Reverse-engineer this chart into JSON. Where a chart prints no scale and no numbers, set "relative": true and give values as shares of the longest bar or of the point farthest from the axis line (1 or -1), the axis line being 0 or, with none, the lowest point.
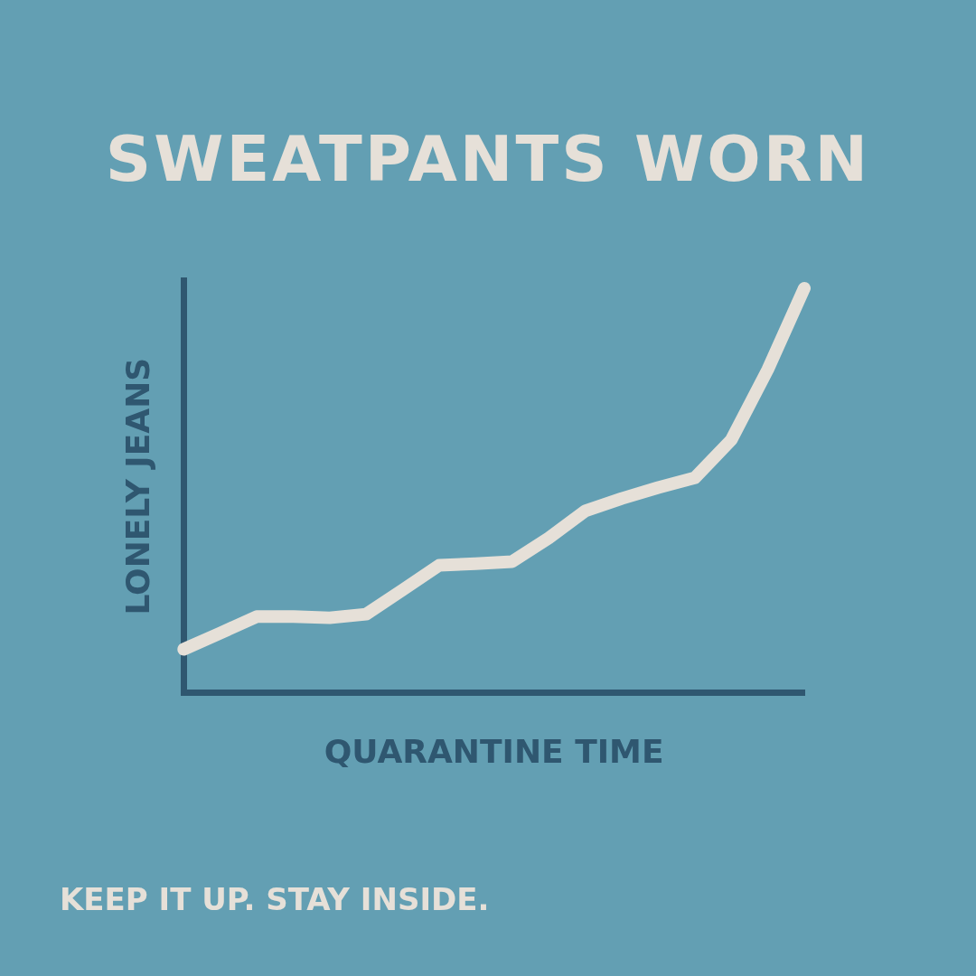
{
  "chart_data": {
    "type": "line",
    "title": "SWEATPANTS WORN",
    "xlabel": "QUARANTINE TIME",
    "ylabel": "LONELY JEANS",
    "relative": true,
    "legend": false,
    "marker": "none",
    "line_style": "solid",
    "annotations": [
      "KEEP IT UP. STAY INSIDE."
    ],
    "categories": [
      null,
      null,
      null,
      null,
      null,
      null,
      null,
      null,
      null,
      null,
      null,
      null,
      null,
      null,
      null,
      null,
      null,
      null
    ],
    "series": [
      {
        "color": "#e6e0d8",
        "values": [
          0.107,
          0.147,
          0.188,
          0.188,
          0.185,
          0.194,
          0.254,
          0.315,
          0.319,
          0.324,
          0.382,
          0.449,
          0.48,
          0.507,
          0.531,
          0.625,
          0.799,
          1
        ]
      }
    ]
  }
}
